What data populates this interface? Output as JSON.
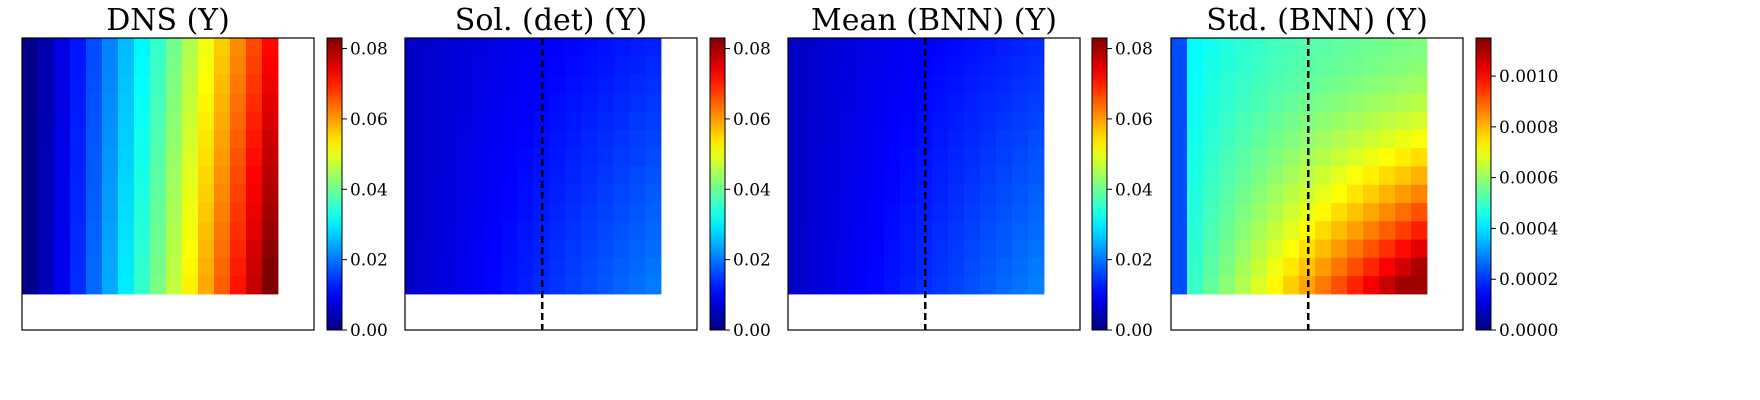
{
  "figure": {
    "background": "#ffffff",
    "colormap": "jet"
  },
  "chart_data": [
    {
      "type": "heatmap",
      "title": "DNS (Y)",
      "grid_size": [
        16,
        14
      ],
      "field": "dns",
      "colorbar": {
        "range": [
          0.0,
          0.083
        ],
        "ticks": [
          0.0,
          0.02,
          0.04,
          0.06,
          0.08
        ],
        "tick_labels": [
          "0.00",
          "0.02",
          "0.04",
          "0.06",
          "0.08"
        ]
      },
      "dashed_line": false
    },
    {
      "type": "heatmap",
      "title": "Sol. (det) (Y)",
      "grid_size": [
        16,
        14
      ],
      "field": "det",
      "colorbar": {
        "range": [
          0.0,
          0.083
        ],
        "ticks": [
          0.0,
          0.02,
          0.04,
          0.06,
          0.08
        ],
        "tick_labels": [
          "0.00",
          "0.02",
          "0.04",
          "0.06",
          "0.08"
        ]
      },
      "dashed_line": true
    },
    {
      "type": "heatmap",
      "title": "Mean (BNN) (Y)",
      "grid_size": [
        16,
        14
      ],
      "field": "mean",
      "colorbar": {
        "range": [
          0.0,
          0.083
        ],
        "ticks": [
          0.0,
          0.02,
          0.04,
          0.06,
          0.08
        ],
        "tick_labels": [
          "0.00",
          "0.02",
          "0.04",
          "0.06",
          "0.08"
        ]
      },
      "dashed_line": true
    },
    {
      "type": "heatmap",
      "title": "Std. (BNN) (Y)",
      "grid_size": [
        16,
        14
      ],
      "field": "std",
      "colorbar": {
        "range": [
          0.0,
          0.00115
        ],
        "ticks": [
          0.0,
          0.0002,
          0.0004,
          0.0006,
          0.0008,
          0.001
        ],
        "tick_labels": [
          "0.0000",
          "0.0002",
          "0.0004",
          "0.0006",
          "0.0008",
          "0.0010"
        ]
      },
      "dashed_line": true
    }
  ]
}
